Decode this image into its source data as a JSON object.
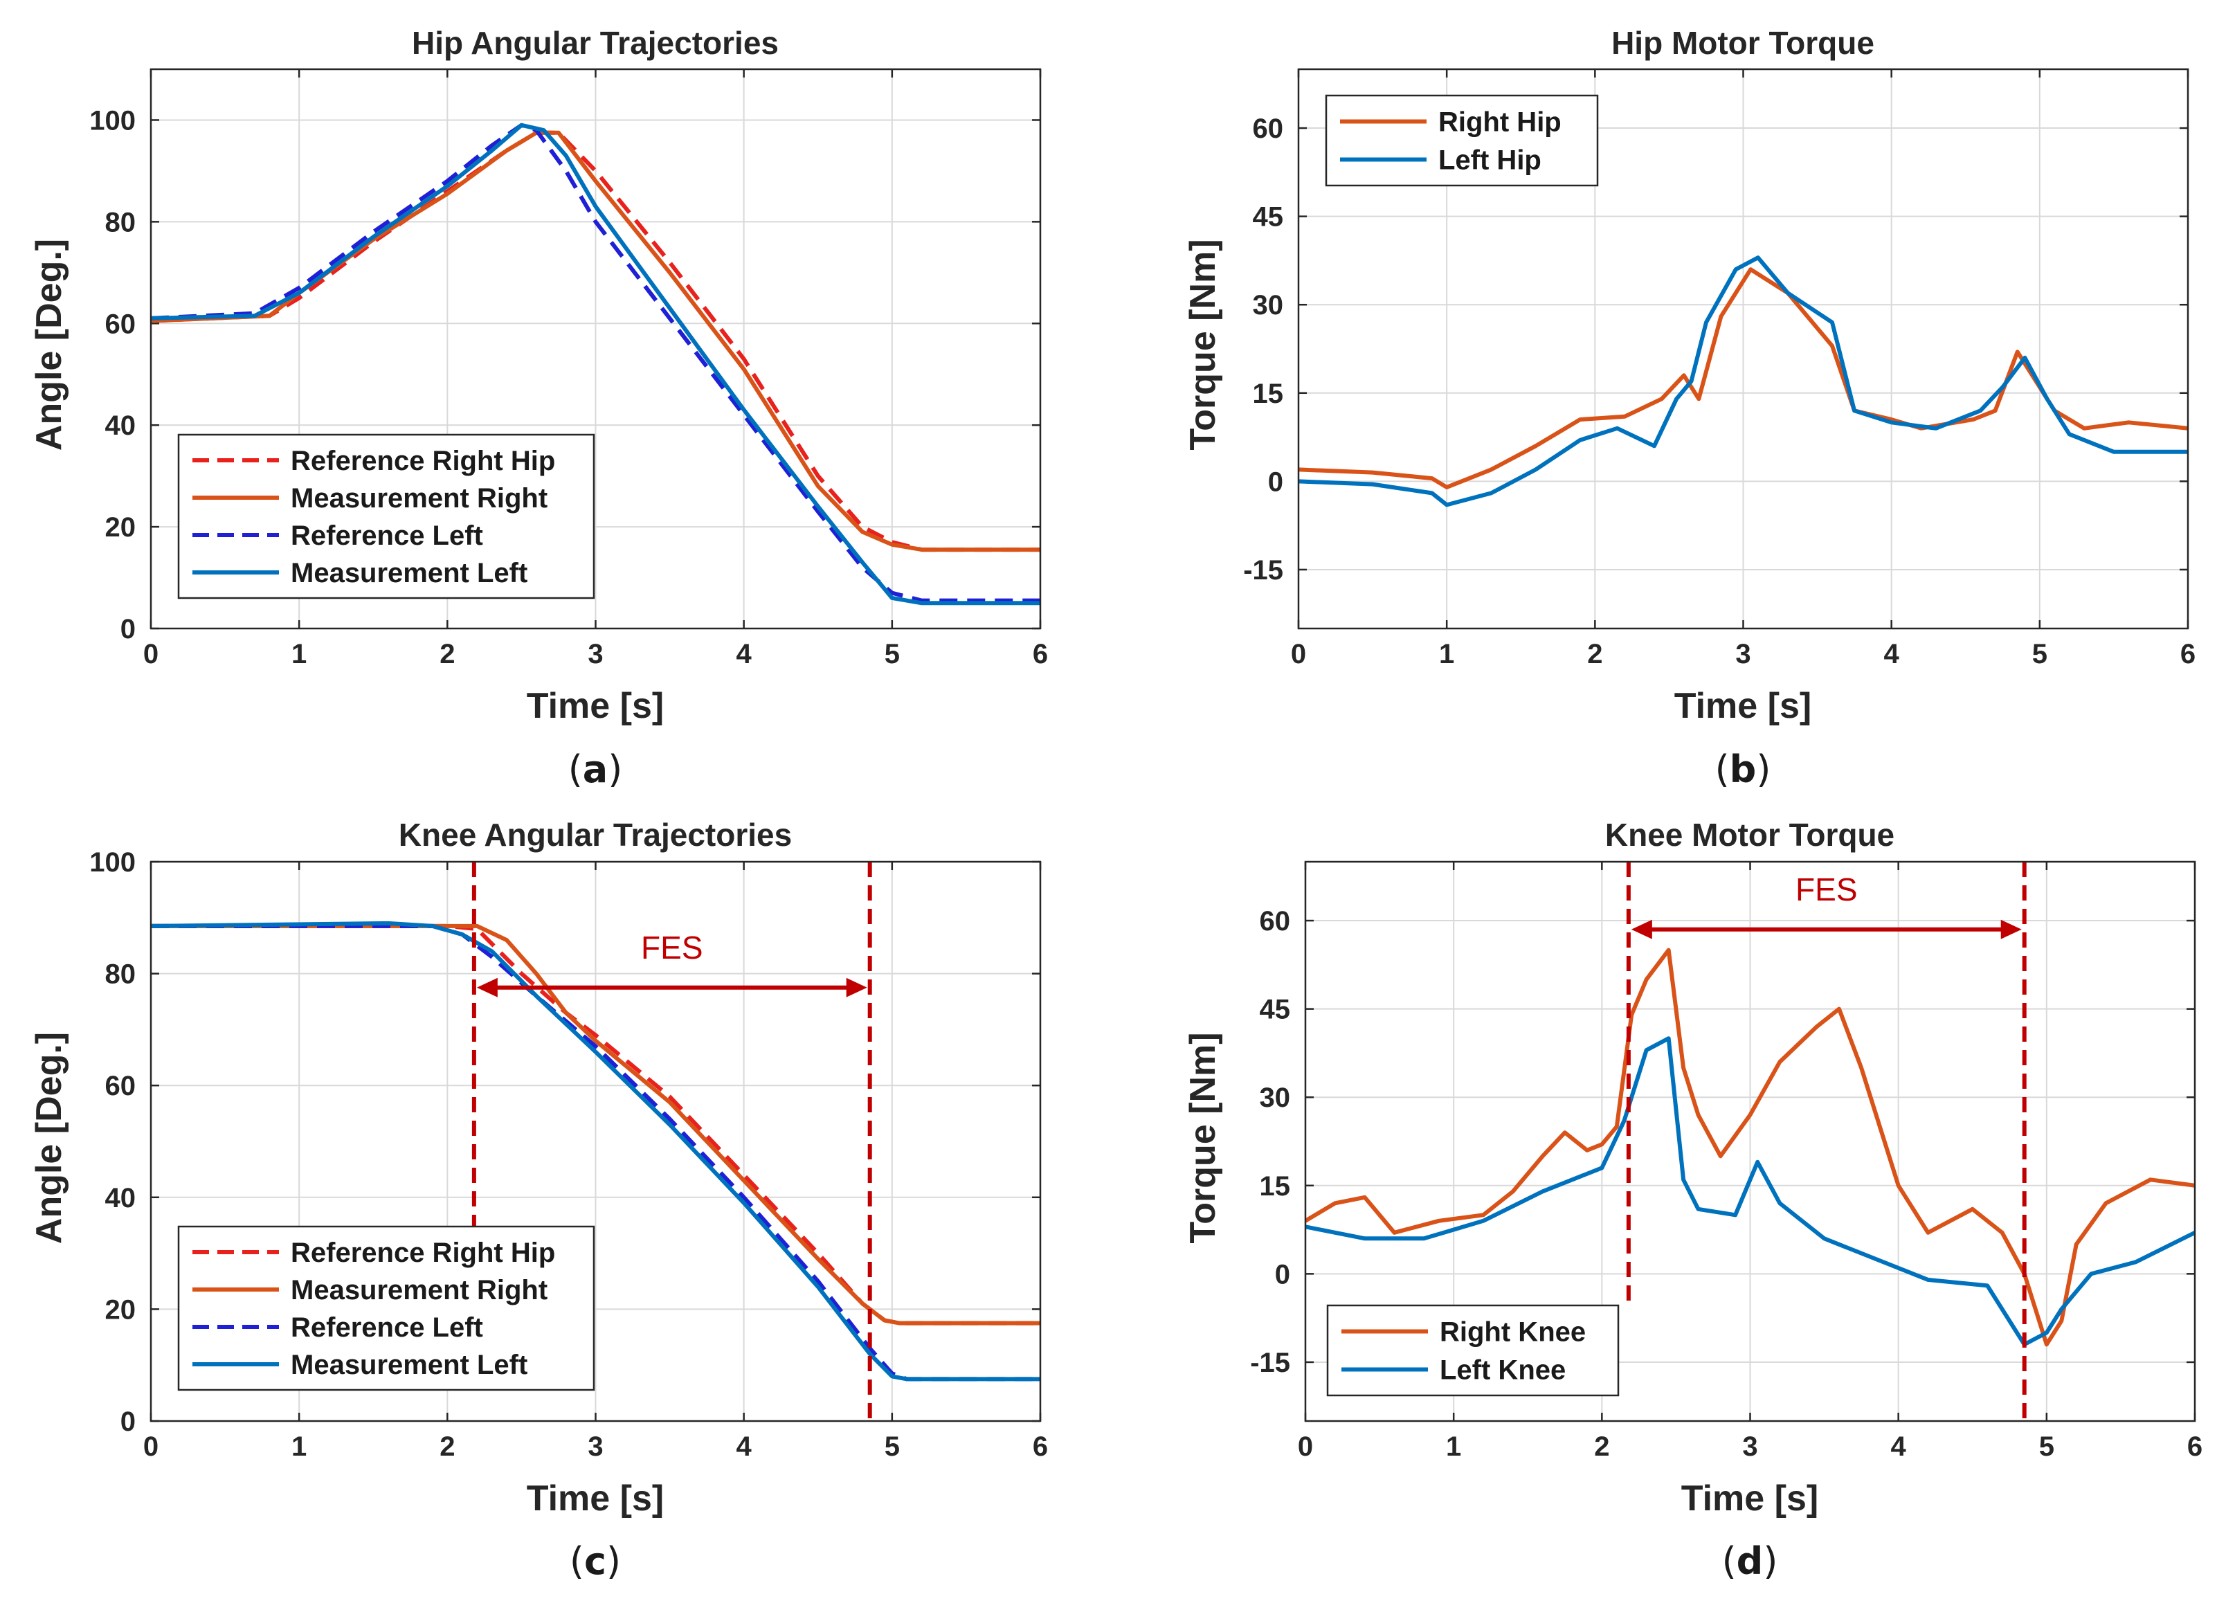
{
  "figure": {
    "colors": {
      "ref_right": "#e8211d",
      "meas_right": "#d95319",
      "ref_left": "#1f1fd6",
      "meas_left": "#0072bd",
      "fes": "#c00000"
    }
  },
  "chart_data": [
    {
      "id": "a",
      "type": "line",
      "title": "Hip Angular Trajectories",
      "xlabel": "Time [s]",
      "ylabel": "Angle [Deg.]",
      "xlim": [
        0,
        6
      ],
      "ylim": [
        0,
        110
      ],
      "xticks": [
        0,
        1,
        2,
        3,
        4,
        5,
        6
      ],
      "yticks": [
        0,
        20,
        40,
        60,
        80,
        100
      ],
      "grid": true,
      "caption_letter": "a",
      "legend": {
        "placement": "bottom-left",
        "entries": [
          "Reference Right Hip",
          "Measurement Right",
          "Reference Left",
          "Measurement Left"
        ]
      },
      "series": [
        {
          "name": "Reference Right Hip",
          "style": "dashed",
          "color": "#e8211d",
          "x": [
            0,
            0.8,
            1.0,
            1.5,
            2.0,
            2.4,
            2.6,
            2.75,
            3.0,
            3.5,
            4.0,
            4.5,
            4.8,
            5.0,
            5.2,
            6.0
          ],
          "y": [
            60.5,
            61.5,
            65,
            76,
            86,
            94,
            97.5,
            97.5,
            90,
            72,
            53,
            30,
            20,
            17,
            15.5,
            15.5
          ]
        },
        {
          "name": "Measurement Right",
          "style": "solid",
          "color": "#d95319",
          "x": [
            0,
            0.8,
            1.0,
            1.5,
            2.0,
            2.4,
            2.6,
            2.75,
            3.0,
            3.5,
            4.0,
            4.5,
            4.8,
            5.0,
            5.2,
            6.0
          ],
          "y": [
            60.5,
            61.5,
            66,
            76.5,
            85.5,
            94,
            97.5,
            97.5,
            88,
            70,
            51,
            28,
            19,
            16.5,
            15.5,
            15.5
          ]
        },
        {
          "name": "Reference Left",
          "style": "dashed",
          "color": "#1f1fd6",
          "x": [
            0,
            0.7,
            1.0,
            1.5,
            2.0,
            2.3,
            2.5,
            2.6,
            2.8,
            3.0,
            3.5,
            4.0,
            4.5,
            4.8,
            5.0,
            5.2,
            6.0
          ],
          "y": [
            61,
            62,
            67,
            78,
            88,
            95,
            99,
            98,
            90,
            80,
            61,
            42,
            23,
            12,
            7,
            5.5,
            5.5
          ]
        },
        {
          "name": "Measurement Left",
          "style": "solid",
          "color": "#0072bd",
          "x": [
            0,
            0.7,
            1.0,
            1.5,
            2.0,
            2.3,
            2.5,
            2.65,
            2.8,
            3.0,
            3.5,
            4.0,
            4.5,
            4.8,
            5.0,
            5.2,
            6.0
          ],
          "y": [
            61,
            61.5,
            66,
            77,
            87,
            94,
            99,
            98,
            93,
            83,
            63,
            43,
            24,
            13,
            6,
            5,
            5
          ]
        }
      ]
    },
    {
      "id": "b",
      "type": "line",
      "title": "Hip Motor Torque",
      "xlabel": "Time [s]",
      "ylabel": "Torque [Nm]",
      "xlim": [
        0,
        6
      ],
      "ylim": [
        -25,
        70
      ],
      "xticks": [
        0,
        1,
        2,
        3,
        4,
        5,
        6
      ],
      "yticks": [
        -15,
        0,
        15,
        30,
        45,
        60
      ],
      "grid": true,
      "caption_letter": "b",
      "legend": {
        "placement": "top-left",
        "entries": [
          "Right Hip",
          "Left Hip"
        ]
      },
      "series": [
        {
          "name": "Right Hip",
          "style": "solid",
          "color": "#d95319",
          "x": [
            0,
            0.5,
            0.9,
            1.0,
            1.3,
            1.6,
            1.9,
            2.2,
            2.45,
            2.6,
            2.7,
            2.85,
            3.05,
            3.3,
            3.6,
            3.75,
            4.0,
            4.2,
            4.55,
            4.7,
            4.85,
            4.95,
            5.1,
            5.3,
            5.6,
            6.0
          ],
          "y": [
            2,
            1.5,
            0.5,
            -1,
            2,
            6,
            10.5,
            11,
            14,
            18,
            14,
            28,
            36,
            32,
            23,
            12,
            10.5,
            9,
            10.5,
            12,
            22,
            18,
            12,
            9,
            10,
            9
          ]
        },
        {
          "name": "Left Hip",
          "style": "solid",
          "color": "#0072bd",
          "x": [
            0,
            0.5,
            0.9,
            1.0,
            1.3,
            1.6,
            1.9,
            2.15,
            2.4,
            2.55,
            2.65,
            2.75,
            2.95,
            3.1,
            3.3,
            3.6,
            3.75,
            4.0,
            4.3,
            4.6,
            4.75,
            4.9,
            5.05,
            5.2,
            5.5,
            5.8,
            6.0
          ],
          "y": [
            0,
            -0.5,
            -2,
            -4,
            -2,
            2,
            7,
            9,
            6,
            14,
            17,
            27,
            36,
            38,
            32,
            27,
            12,
            10,
            9,
            12,
            16,
            21,
            14,
            8,
            5,
            5,
            5
          ]
        }
      ]
    },
    {
      "id": "c",
      "type": "line",
      "title": "Knee Angular Trajectories",
      "xlabel": "Time [s]",
      "ylabel": "Angle [Deg.]",
      "xlim": [
        0,
        6
      ],
      "ylim": [
        0,
        100
      ],
      "xticks": [
        0,
        1,
        2,
        3,
        4,
        5,
        6
      ],
      "yticks": [
        0,
        20,
        40,
        60,
        80,
        100
      ],
      "grid": true,
      "caption_letter": "c",
      "legend": {
        "placement": "bottom-left",
        "entries": [
          "Reference Right Hip",
          "Measurement Right",
          "Reference Left",
          "Measurement Left"
        ]
      },
      "annotation": {
        "label": "FES",
        "x_start": 2.18,
        "x_end": 4.85
      },
      "series": [
        {
          "name": "Reference Right Hip",
          "style": "dashed",
          "color": "#e8211d",
          "x": [
            0,
            2.0,
            2.2,
            2.5,
            2.8,
            3.0,
            3.5,
            4.0,
            4.5,
            4.8,
            4.95,
            5.05,
            6.0
          ],
          "y": [
            88.5,
            88.5,
            88,
            80,
            73,
            69,
            58,
            44,
            30,
            21,
            18,
            17.5,
            17.5
          ]
        },
        {
          "name": "Measurement Right",
          "style": "solid",
          "color": "#d95319",
          "x": [
            0,
            2.0,
            2.2,
            2.4,
            2.6,
            2.8,
            3.0,
            3.5,
            4.0,
            4.5,
            4.8,
            4.95,
            5.05,
            6.0
          ],
          "y": [
            88.5,
            88.5,
            88.5,
            86,
            80,
            73,
            68,
            57,
            43,
            29,
            21,
            18,
            17.5,
            17.5
          ]
        },
        {
          "name": "Reference Left",
          "style": "dashed",
          "color": "#1f1fd6",
          "x": [
            0,
            1.9,
            2.1,
            2.3,
            2.6,
            3.0,
            3.5,
            4.0,
            4.5,
            4.85,
            5.0,
            5.1,
            6.0
          ],
          "y": [
            88.5,
            88.5,
            87,
            83,
            76,
            67,
            54,
            40,
            25,
            13,
            8.5,
            7.5,
            7.5
          ]
        },
        {
          "name": "Measurement Left",
          "style": "solid",
          "color": "#0072bd",
          "x": [
            0,
            1.6,
            1.9,
            2.1,
            2.3,
            2.6,
            3.0,
            3.5,
            4.0,
            4.5,
            4.85,
            5.0,
            5.1,
            6.0
          ],
          "y": [
            88.5,
            89,
            88.5,
            87,
            84,
            76,
            66,
            53,
            39,
            24,
            12,
            8,
            7.5,
            7.5
          ]
        }
      ]
    },
    {
      "id": "d",
      "type": "line",
      "title": "Knee Motor Torque",
      "xlabel": "Time [s]",
      "ylabel": "Torque [Nm]",
      "xlim": [
        0,
        6
      ],
      "ylim": [
        -25,
        70
      ],
      "xticks": [
        0,
        1,
        2,
        3,
        4,
        5,
        6
      ],
      "yticks": [
        -15,
        0,
        15,
        30,
        45,
        60
      ],
      "grid": true,
      "caption_letter": "d",
      "legend": {
        "placement": "bottom-left",
        "entries": [
          "Right Knee",
          "Left Knee"
        ]
      },
      "annotation": {
        "label": "FES",
        "x_start": 2.18,
        "x_end": 4.85
      },
      "series": [
        {
          "name": "Right Knee",
          "style": "solid",
          "color": "#d95319",
          "x": [
            0,
            0.2,
            0.4,
            0.6,
            0.9,
            1.2,
            1.4,
            1.6,
            1.75,
            1.9,
            2.0,
            2.1,
            2.2,
            2.3,
            2.45,
            2.55,
            2.65,
            2.8,
            3.0,
            3.2,
            3.45,
            3.6,
            3.75,
            4.0,
            4.2,
            4.5,
            4.7,
            4.85,
            5.0,
            5.1,
            5.2,
            5.4,
            5.7,
            6.0
          ],
          "y": [
            9,
            12,
            13,
            7,
            9,
            10,
            14,
            20,
            24,
            21,
            22,
            25,
            44,
            50,
            55,
            35,
            27,
            20,
            27,
            36,
            42,
            45,
            35,
            15,
            7,
            11,
            7,
            0,
            -12,
            -8,
            5,
            12,
            16,
            15
          ]
        },
        {
          "name": "Left Knee",
          "style": "solid",
          "color": "#0072bd",
          "x": [
            0,
            0.4,
            0.8,
            1.2,
            1.6,
            2.0,
            2.15,
            2.3,
            2.45,
            2.55,
            2.65,
            2.9,
            3.05,
            3.2,
            3.5,
            3.8,
            4.2,
            4.6,
            4.75,
            4.85,
            5.0,
            5.1,
            5.3,
            5.6,
            6.0
          ],
          "y": [
            8,
            6,
            6,
            9,
            14,
            18,
            26,
            38,
            40,
            16,
            11,
            10,
            19,
            12,
            6,
            3,
            -1,
            -2,
            -8,
            -12,
            -10,
            -6,
            0,
            2,
            7
          ]
        }
      ]
    }
  ]
}
